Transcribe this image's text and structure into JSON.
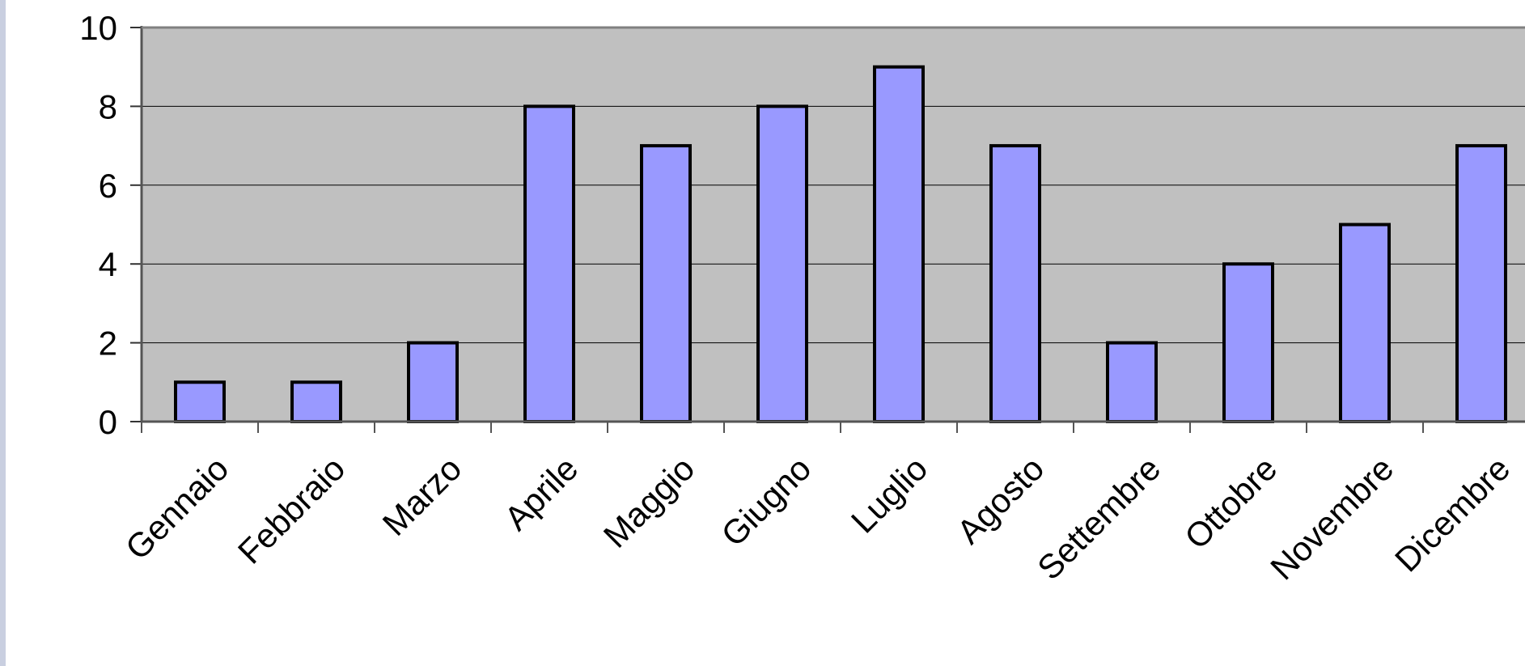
{
  "chart_data": {
    "type": "bar",
    "categories": [
      "Gennaio",
      "Febbraio",
      "Marzo",
      "Aprile",
      "Maggio",
      "Giugno",
      "Luglio",
      "Agosto",
      "Settembre",
      "Ottobre",
      "Novembre",
      "Dicembre"
    ],
    "values": [
      1,
      1,
      2,
      8,
      7,
      8,
      9,
      7,
      2,
      4,
      5,
      7
    ],
    "ylim": [
      0,
      10
    ],
    "yticks": [
      "0",
      "2",
      "4",
      "6",
      "8",
      "10"
    ],
    "grid": true,
    "legend": "none",
    "colors": {
      "bar_fill": "#9999ff",
      "bar_stroke": "#000000",
      "plot_background": "#c0c0c0",
      "gridline": "#000000"
    }
  }
}
